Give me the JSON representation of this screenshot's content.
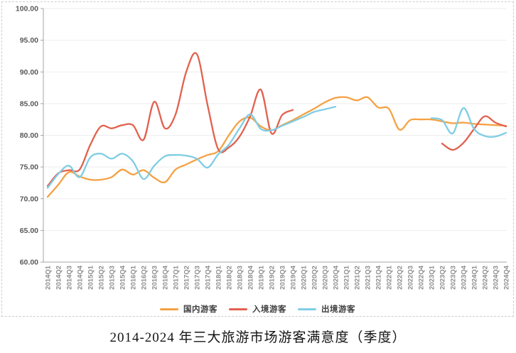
{
  "title": "2014-2024 年三大旅游市场游客满意度（季度）",
  "chart_data": {
    "type": "line",
    "title": "2014-2024 年三大旅游市场游客满意度（季度）",
    "xlabel": "",
    "ylabel": "",
    "ylim": [
      60,
      100
    ],
    "grid": true,
    "legend_position": "bottom",
    "y_ticks": [
      "100.00",
      "95.00",
      "90.00",
      "85.00",
      "80.00",
      "75.00",
      "70.00",
      "65.00",
      "60.00"
    ],
    "y_tick_values": [
      100,
      95,
      90,
      85,
      80,
      75,
      70,
      65,
      60
    ],
    "categories": [
      "2014Q1",
      "2014Q2",
      "2014Q3",
      "2014Q4",
      "2015Q1",
      "2015Q2",
      "2015Q3",
      "2015Q4",
      "2016Q1",
      "2016Q2",
      "2016Q3",
      "2016Q4",
      "2017Q1",
      "2017Q2",
      "2017Q3",
      "2017Q4",
      "2018Q1",
      "2018Q2",
      "2018Q3",
      "2018Q4",
      "2019Q1",
      "2019Q2",
      "2019Q3",
      "2019Q4",
      "2020Q1",
      "2020Q2",
      "2020Q3",
      "2020Q4",
      "2021Q1",
      "2021Q2",
      "2021Q3",
      "2021Q4",
      "2022Q1",
      "2022Q2",
      "2022Q3",
      "2022Q4",
      "2023Q1",
      "2023Q2",
      "2023Q3",
      "2023Q4",
      "2024Q1",
      "2024Q2",
      "2024Q3",
      "2024Q4"
    ],
    "series": [
      {
        "name": "国内游客",
        "color": "#F5A142",
        "values": [
          70.3,
          72.2,
          74.2,
          73.5,
          73.0,
          73.0,
          73.4,
          74.6,
          73.8,
          74.5,
          73.3,
          72.6,
          74.6,
          75.4,
          76.2,
          76.9,
          77.5,
          80.0,
          82.2,
          82.8,
          81.4,
          80.8,
          81.6,
          82.4,
          83.3,
          84.2,
          85.2,
          85.9,
          86.0,
          85.5,
          86.0,
          84.4,
          84.2,
          80.9,
          82.4,
          82.5,
          82.5,
          82.2,
          81.9,
          82.0,
          81.8,
          81.7,
          81.6,
          81.5
        ]
      },
      {
        "name": "入境游客",
        "color": "#E2614E",
        "values": [
          72.0,
          74.0,
          74.5,
          74.6,
          78.5,
          81.4,
          81.1,
          81.6,
          81.6,
          79.3,
          85.3,
          81.1,
          83.3,
          90.0,
          92.8,
          84.8,
          77.8,
          78.1,
          79.8,
          83.0,
          87.2,
          80.3,
          83.2,
          84.0,
          null,
          null,
          null,
          null,
          null,
          null,
          null,
          null,
          null,
          null,
          null,
          null,
          null,
          78.7,
          77.7,
          78.8,
          81.0,
          83.0,
          82.0,
          81.4
        ]
      },
      {
        "name": "出境游客",
        "color": "#7FCDE4",
        "values": [
          71.7,
          73.9,
          75.2,
          73.4,
          76.5,
          77.1,
          76.3,
          77.1,
          75.9,
          73.1,
          75.2,
          76.7,
          76.9,
          76.8,
          76.3,
          74.9,
          77.0,
          78.5,
          81.1,
          83.3,
          81.0,
          80.8,
          81.5,
          82.2,
          82.9,
          83.7,
          84.1,
          84.5,
          null,
          null,
          null,
          null,
          null,
          null,
          null,
          null,
          82.7,
          82.4,
          80.3,
          84.3,
          81.0,
          79.9,
          79.8,
          80.4
        ]
      }
    ]
  }
}
